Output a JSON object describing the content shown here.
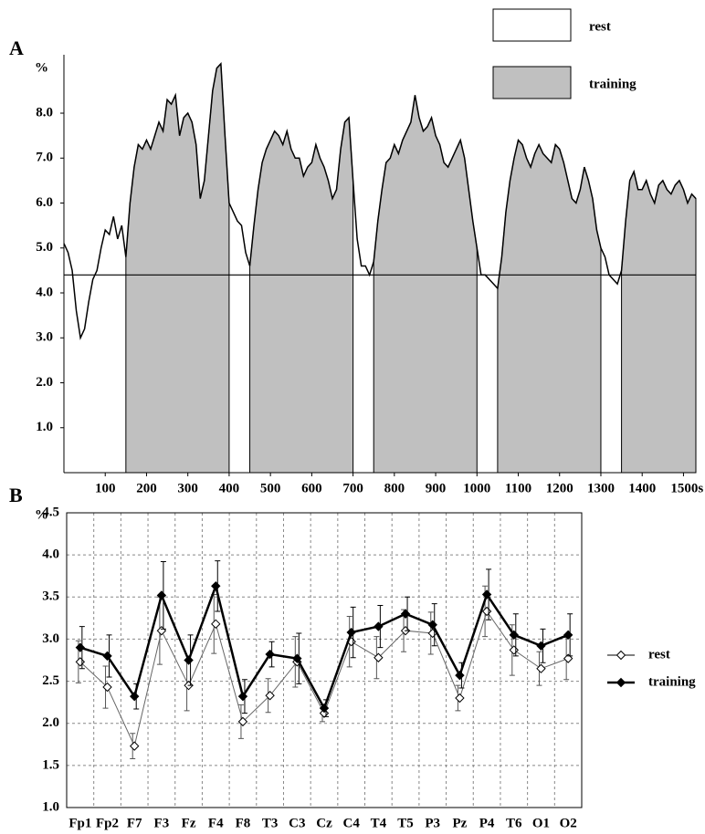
{
  "chart_data": [
    {
      "type": "line",
      "panel_label": "A",
      "y_unit": "%",
      "x": [
        0,
        10,
        20,
        30,
        40,
        50,
        60,
        70,
        80,
        90,
        100,
        110,
        120,
        130,
        140,
        150,
        160,
        170,
        180,
        190,
        200,
        210,
        220,
        230,
        240,
        250,
        260,
        270,
        280,
        290,
        300,
        310,
        320,
        330,
        340,
        350,
        360,
        370,
        380,
        390,
        400,
        410,
        420,
        430,
        440,
        450,
        460,
        470,
        480,
        490,
        500,
        510,
        520,
        530,
        540,
        550,
        560,
        570,
        580,
        590,
        600,
        610,
        620,
        630,
        640,
        650,
        660,
        670,
        680,
        690,
        700,
        710,
        720,
        730,
        740,
        750,
        760,
        770,
        780,
        790,
        800,
        810,
        820,
        830,
        840,
        850,
        860,
        870,
        880,
        890,
        900,
        910,
        920,
        930,
        940,
        950,
        960,
        970,
        980,
        990,
        1000,
        1010,
        1020,
        1030,
        1040,
        1050,
        1060,
        1070,
        1080,
        1090,
        1100,
        1110,
        1120,
        1130,
        1140,
        1150,
        1160,
        1170,
        1180,
        1190,
        1200,
        1210,
        1220,
        1230,
        1240,
        1250,
        1260,
        1270,
        1280,
        1290,
        1300,
        1310,
        1320,
        1330,
        1340,
        1350,
        1360,
        1370,
        1380,
        1390,
        1400,
        1410,
        1420,
        1430,
        1440,
        1450,
        1460,
        1470,
        1480,
        1490,
        1500,
        1510,
        1520,
        1530
      ],
      "values": [
        5.1,
        4.9,
        4.5,
        3.6,
        3.0,
        3.2,
        3.8,
        4.3,
        4.5,
        5.0,
        5.4,
        5.3,
        5.7,
        5.2,
        5.5,
        4.8,
        6.0,
        6.8,
        7.3,
        7.2,
        7.4,
        7.2,
        7.5,
        7.8,
        7.6,
        8.3,
        8.2,
        8.4,
        7.5,
        7.9,
        8.0,
        7.8,
        7.3,
        6.1,
        6.5,
        7.5,
        8.5,
        9.0,
        9.1,
        7.5,
        6.0,
        5.8,
        5.6,
        5.5,
        4.9,
        4.6,
        5.5,
        6.3,
        6.9,
        7.2,
        7.4,
        7.6,
        7.5,
        7.3,
        7.6,
        7.2,
        7.0,
        7.0,
        6.6,
        6.8,
        6.9,
        7.3,
        7.0,
        6.8,
        6.5,
        6.1,
        6.3,
        7.2,
        7.8,
        7.9,
        6.5,
        5.2,
        4.6,
        4.6,
        4.4,
        4.7,
        5.6,
        6.3,
        6.9,
        7.0,
        7.3,
        7.1,
        7.4,
        7.6,
        7.8,
        8.4,
        7.9,
        7.6,
        7.7,
        7.9,
        7.5,
        7.3,
        6.9,
        6.8,
        7.0,
        7.2,
        7.4,
        7.0,
        6.3,
        5.6,
        5.0,
        4.4,
        4.4,
        4.3,
        4.2,
        4.1,
        4.8,
        5.8,
        6.5,
        7.0,
        7.4,
        7.3,
        7.0,
        6.8,
        7.1,
        7.3,
        7.1,
        7.0,
        6.9,
        7.3,
        7.2,
        6.9,
        6.5,
        6.1,
        6.0,
        6.3,
        6.8,
        6.5,
        6.1,
        5.4,
        5.0,
        4.8,
        4.4,
        4.3,
        4.2,
        4.5,
        5.6,
        6.5,
        6.7,
        6.3,
        6.3,
        6.5,
        6.2,
        6.0,
        6.4,
        6.5,
        6.3,
        6.2,
        6.4,
        6.5,
        6.3,
        6.0,
        6.2,
        6.1
      ],
      "baseline": 4.4,
      "training_periods": [
        [
          150,
          400
        ],
        [
          450,
          700
        ],
        [
          750,
          1000
        ],
        [
          1050,
          1300
        ],
        [
          1350,
          1530
        ]
      ],
      "legend": [
        {
          "name": "rest",
          "color": "#ffffff"
        },
        {
          "name": "training",
          "color": "#c0c0c0"
        }
      ],
      "xlim": [
        0,
        1530
      ],
      "ylim": [
        0,
        9.3
      ],
      "xticks": [
        100,
        200,
        300,
        400,
        500,
        600,
        700,
        800,
        900,
        1000,
        1100,
        1200,
        1300,
        1400,
        {
          "value": 1500,
          "label": "1500s"
        }
      ],
      "yticks": [
        {
          "value": 1,
          "label": "1.0"
        },
        {
          "value": 2,
          "label": "2.0"
        },
        {
          "value": 3,
          "label": "3.0"
        },
        {
          "value": 4,
          "label": "4.0"
        },
        {
          "value": 5,
          "label": "5.0"
        },
        {
          "value": 6,
          "label": "6.0"
        },
        {
          "value": 7,
          "label": "7.0"
        },
        {
          "value": 8,
          "label": "8.0"
        }
      ]
    },
    {
      "type": "errorbar",
      "panel_label": "B",
      "y_unit": "%",
      "categories": [
        "Fp1",
        "Fp2",
        "F7",
        "F3",
        "Fz",
        "F4",
        "F8",
        "T3",
        "C3",
        "Cz",
        "C4",
        "T4",
        "T5",
        "P3",
        "Pz",
        "P4",
        "T6",
        "O1",
        "O2"
      ],
      "series": [
        {
          "name": "rest",
          "color": "#ffffff",
          "values": [
            2.73,
            2.43,
            1.73,
            3.1,
            2.45,
            3.18,
            2.02,
            2.33,
            2.73,
            2.12,
            2.97,
            2.78,
            3.1,
            3.07,
            2.3,
            3.33,
            2.87,
            2.65,
            2.77
          ],
          "errors": [
            0.25,
            0.25,
            0.15,
            0.4,
            0.3,
            0.35,
            0.2,
            0.2,
            0.3,
            0.1,
            0.3,
            0.25,
            0.25,
            0.25,
            0.15,
            0.3,
            0.3,
            0.2,
            0.25
          ]
        },
        {
          "name": "training",
          "color": "#000000",
          "values": [
            2.9,
            2.8,
            2.32,
            3.52,
            2.75,
            3.63,
            2.32,
            2.82,
            2.77,
            2.18,
            3.08,
            3.15,
            3.3,
            3.17,
            2.57,
            3.53,
            3.05,
            2.92,
            3.05
          ],
          "errors": [
            0.25,
            0.25,
            0.15,
            0.4,
            0.3,
            0.3,
            0.2,
            0.15,
            0.3,
            0.1,
            0.3,
            0.25,
            0.2,
            0.25,
            0.15,
            0.3,
            0.25,
            0.2,
            0.25
          ]
        }
      ],
      "ylim": [
        1,
        4.5
      ],
      "yticks": [
        {
          "value": 1,
          "label": "1.0"
        },
        1.5,
        {
          "value": 2,
          "label": "2.0"
        },
        2.5,
        {
          "value": 3,
          "label": "3.0"
        },
        3.5,
        {
          "value": 4,
          "label": "4.0"
        },
        4.5
      ],
      "grid": true
    }
  ]
}
